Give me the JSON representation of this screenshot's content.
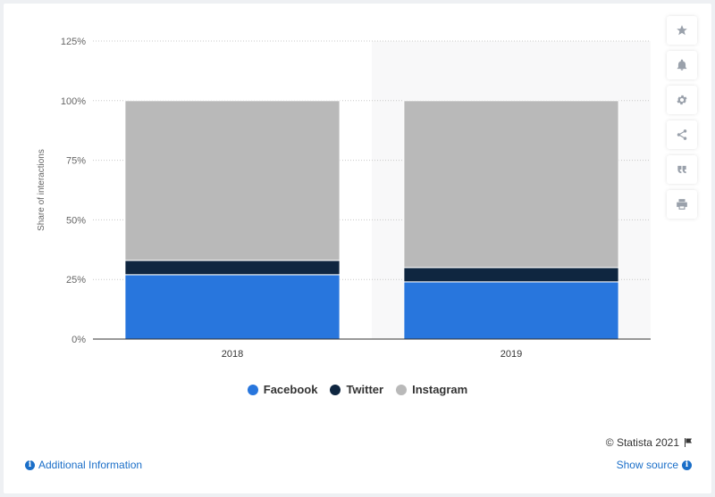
{
  "chart_data": {
    "type": "bar",
    "stacked": true,
    "categories": [
      "2018",
      "2019"
    ],
    "series": [
      {
        "name": "Facebook",
        "values": [
          27,
          24
        ],
        "color": "#2876dd"
      },
      {
        "name": "Twitter",
        "values": [
          6,
          6
        ],
        "color": "#0f2640"
      },
      {
        "name": "Instagram",
        "values": [
          67,
          70
        ],
        "color": "#b9b9b9"
      }
    ],
    "ylabel": "Share of interactions",
    "ylim": [
      0,
      125
    ],
    "yticks": [
      0,
      25,
      50,
      75,
      100,
      125
    ],
    "ytick_labels": [
      "0%",
      "25%",
      "50%",
      "75%",
      "100%",
      "125%"
    ],
    "grid": true,
    "legend": "bottom-center",
    "highlighted_category": "2019"
  },
  "toolbar": {
    "items": [
      {
        "name": "favorite",
        "icon": "star-icon"
      },
      {
        "name": "notification",
        "icon": "bell-icon"
      },
      {
        "name": "settings",
        "icon": "gear-icon"
      },
      {
        "name": "share",
        "icon": "share-icon"
      },
      {
        "name": "cite",
        "icon": "quote-icon"
      },
      {
        "name": "print",
        "icon": "print-icon"
      }
    ]
  },
  "footer": {
    "copyright": "© Statista 2021",
    "additional_info": "Additional Information",
    "show_source": "Show source"
  }
}
